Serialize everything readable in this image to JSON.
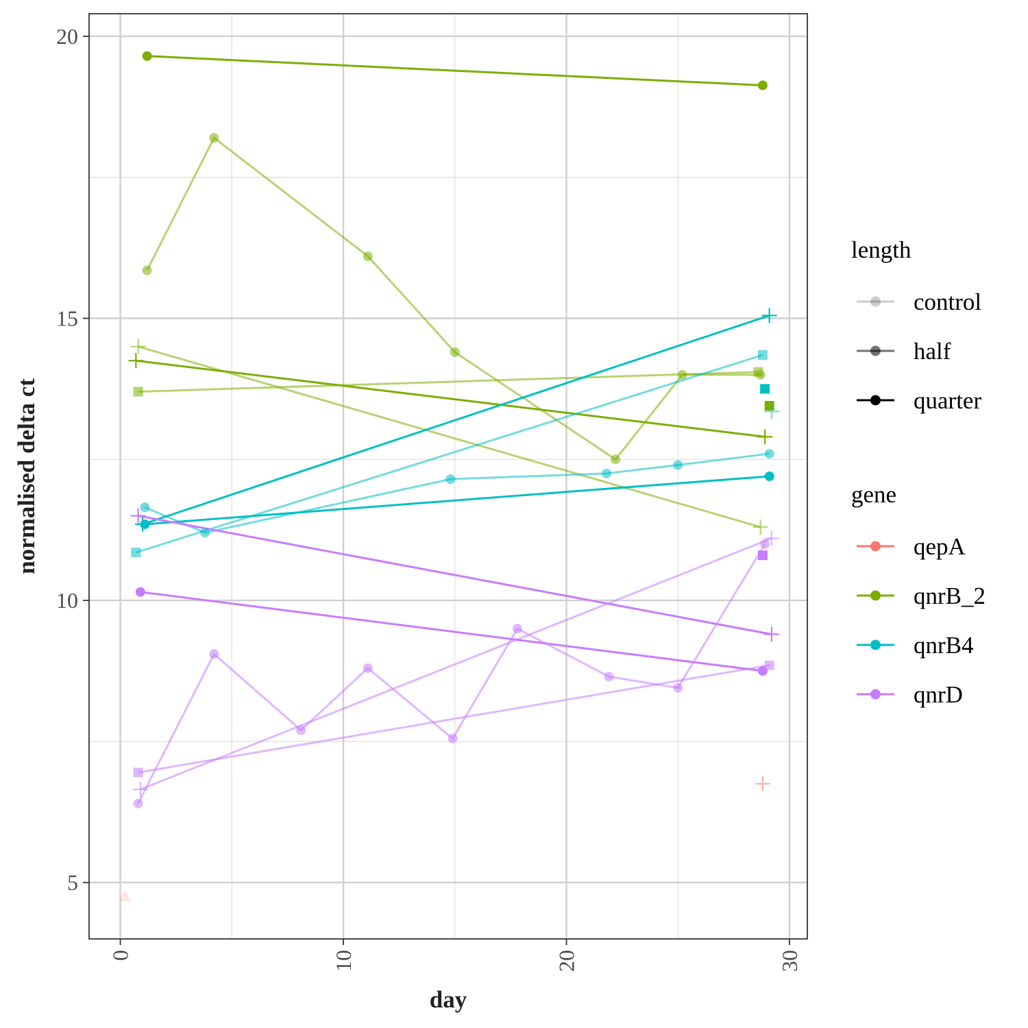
{
  "chart_data": {
    "type": "line",
    "xlabel": "day",
    "ylabel": "normalised delta ct",
    "xlim": [
      -1.4,
      30.8
    ],
    "ylim": [
      4.0,
      20.4
    ],
    "x_ticks": [
      0,
      10,
      20,
      30
    ],
    "y_ticks": [
      5,
      10,
      15,
      20
    ],
    "x_tick_labels": [
      "0",
      "10",
      "20",
      "30"
    ],
    "y_tick_labels": [
      "5",
      "10",
      "15",
      "20"
    ],
    "grid": true,
    "legend_position": "right",
    "colors": {
      "qepA": "#F8766D",
      "qnrB_2": "#7CAE00",
      "qnrB4": "#00BFC4",
      "qnrD": "#C77CFF"
    },
    "alpha": {
      "control": 0.2,
      "half": 0.55,
      "quarter": 1.0
    },
    "legends": [
      {
        "title": "length",
        "entries": [
          "control",
          "half",
          "quarter"
        ]
      },
      {
        "title": "gene",
        "entries": [
          "qepA",
          "qnrB_2",
          "qnrB4",
          "qnrD"
        ]
      }
    ],
    "series": [
      {
        "gene": "qnrB_2",
        "length": "quarter",
        "marker": "circle",
        "points": [
          [
            1.2,
            19.65
          ],
          [
            28.8,
            19.13
          ]
        ]
      },
      {
        "gene": "qnrB_2",
        "length": "half",
        "marker": "circle",
        "points": [
          [
            1.2,
            15.85
          ],
          [
            4.2,
            18.2
          ],
          [
            11.1,
            16.1
          ],
          [
            15.0,
            14.4
          ],
          [
            22.2,
            12.5
          ],
          [
            25.2,
            14.0
          ],
          [
            28.7,
            14.0
          ]
        ]
      },
      {
        "gene": "qnrB_2",
        "length": "half",
        "marker": "plus",
        "points": [
          [
            0.8,
            14.5
          ],
          [
            28.7,
            11.3
          ]
        ]
      },
      {
        "gene": "qnrB_2",
        "length": "quarter",
        "marker": "plus",
        "points": [
          [
            0.7,
            14.25
          ],
          [
            28.9,
            12.9
          ]
        ]
      },
      {
        "gene": "qnrB_2",
        "length": "half",
        "marker": "square",
        "points": [
          [
            0.8,
            13.7
          ],
          [
            28.6,
            14.05
          ]
        ]
      },
      {
        "gene": "qnrB_2",
        "length": "quarter",
        "marker": "square",
        "points": [
          [
            29.1,
            13.45
          ]
        ]
      },
      {
        "gene": "qnrB4",
        "length": "quarter",
        "marker": "plus",
        "points": [
          [
            1.0,
            11.35
          ],
          [
            29.1,
            15.05
          ]
        ]
      },
      {
        "gene": "qnrB4",
        "length": "half",
        "marker": "square",
        "points": [
          [
            0.7,
            10.85
          ],
          [
            28.8,
            14.35
          ]
        ]
      },
      {
        "gene": "qnrB4",
        "length": "quarter",
        "marker": "square",
        "points": [
          [
            28.9,
            13.75
          ]
        ]
      },
      {
        "gene": "qnrB4",
        "length": "half",
        "marker": "plus",
        "points": [
          [
            29.2,
            13.35
          ]
        ]
      },
      {
        "gene": "qnrB4",
        "length": "half",
        "marker": "circle",
        "points": [
          [
            1.1,
            11.65
          ],
          [
            3.8,
            11.2
          ],
          [
            14.8,
            12.15
          ],
          [
            21.8,
            12.25
          ],
          [
            25.0,
            12.4
          ],
          [
            29.1,
            12.6
          ]
        ]
      },
      {
        "gene": "qnrB4",
        "length": "quarter",
        "marker": "circle",
        "points": [
          [
            1.1,
            11.35
          ],
          [
            29.1,
            12.2
          ]
        ]
      },
      {
        "gene": "qnrD",
        "length": "quarter",
        "marker": "plus",
        "points": [
          [
            0.8,
            11.5
          ],
          [
            29.2,
            9.4
          ]
        ]
      },
      {
        "gene": "qnrD",
        "length": "quarter",
        "marker": "circle",
        "points": [
          [
            0.9,
            10.15
          ],
          [
            28.8,
            8.75
          ]
        ]
      },
      {
        "gene": "qnrD",
        "length": "half",
        "marker": "plus",
        "points": [
          [
            0.9,
            6.65
          ],
          [
            29.2,
            11.1
          ]
        ]
      },
      {
        "gene": "qnrD",
        "length": "half",
        "marker": "circle",
        "points": [
          [
            0.8,
            6.4
          ],
          [
            4.2,
            9.05
          ],
          [
            8.1,
            7.7
          ],
          [
            11.1,
            8.8
          ],
          [
            14.9,
            7.55
          ],
          [
            17.8,
            9.5
          ],
          [
            21.9,
            8.65
          ],
          [
            25.0,
            8.45
          ],
          [
            28.9,
            11.0
          ]
        ]
      },
      {
        "gene": "qnrD",
        "length": "quarter",
        "marker": "square",
        "points": [
          [
            28.8,
            10.8
          ]
        ]
      },
      {
        "gene": "qnrD",
        "length": "half",
        "marker": "square",
        "points": [
          [
            0.8,
            6.95
          ],
          [
            29.1,
            8.85
          ]
        ]
      },
      {
        "gene": "qepA",
        "length": "half",
        "marker": "plus",
        "points": [
          [
            28.8,
            6.75
          ]
        ]
      },
      {
        "gene": "qepA",
        "length": "control",
        "marker": "triangle",
        "points": [
          [
            0.2,
            4.75
          ]
        ]
      }
    ]
  }
}
